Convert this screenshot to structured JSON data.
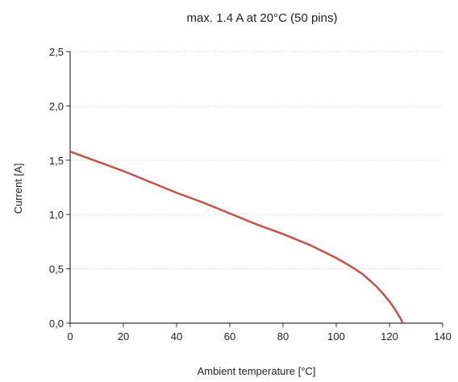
{
  "chart_data": {
    "type": "line",
    "title": "max. 1.4 A at 20°C (50 pins)",
    "xlabel": "Ambient temperature [°C]",
    "ylabel": "Current [A]",
    "xlim": [
      0,
      140
    ],
    "ylim": [
      0,
      2.5
    ],
    "x_ticks": [
      0,
      20,
      40,
      60,
      80,
      100,
      120,
      140
    ],
    "x_tick_labels": [
      "0",
      "20",
      "40",
      "60",
      "80",
      "100",
      "120",
      "140"
    ],
    "y_ticks": [
      0,
      0.5,
      1.0,
      1.5,
      2.0,
      2.5
    ],
    "y_tick_labels": [
      "0,0",
      "0,5",
      "1,0",
      "1,5",
      "2,0",
      "2,5"
    ],
    "grid": true,
    "line_color": "#c8504a",
    "series": [
      {
        "x": [
          0,
          10,
          20,
          30,
          40,
          50,
          60,
          70,
          80,
          90,
          100,
          105,
          110,
          115,
          118,
          120,
          122,
          123,
          124,
          125
        ],
        "y": [
          1.58,
          1.49,
          1.4,
          1.3,
          1.2,
          1.11,
          1.01,
          0.91,
          0.82,
          0.72,
          0.6,
          0.53,
          0.45,
          0.34,
          0.26,
          0.2,
          0.13,
          0.09,
          0.05,
          0.0
        ]
      }
    ]
  }
}
